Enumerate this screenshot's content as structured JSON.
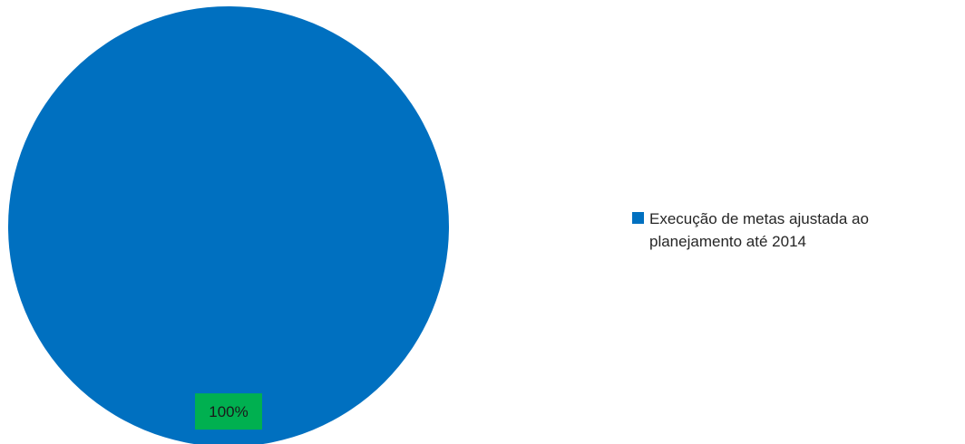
{
  "chart_data": {
    "type": "pie",
    "title": "",
    "categories": [
      "Execução de metas ajustada ao planejamento até 2014"
    ],
    "values": [
      100
    ],
    "data_labels": [
      "100%"
    ],
    "colors": [
      "#0070C0"
    ],
    "label_background": "#00B050",
    "legend_position": "right"
  }
}
